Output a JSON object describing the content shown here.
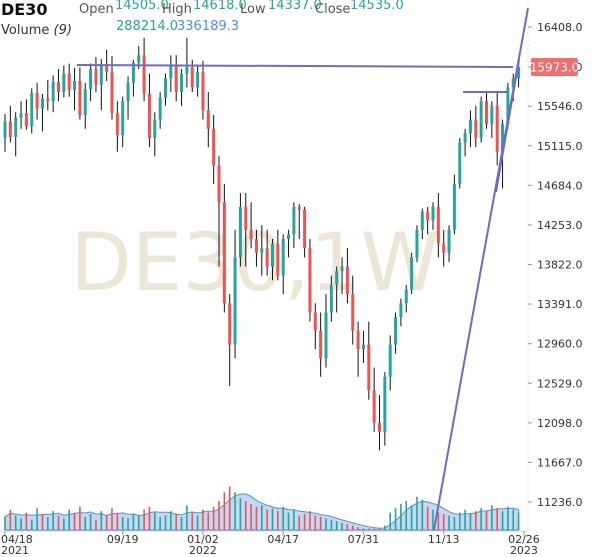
{
  "header": {
    "symbol": "DE30",
    "open_label": "Open",
    "open_value": "14505.0",
    "high_label": "High",
    "high_value": "14618.0",
    "low_label": "Low",
    "low_value": "14337.0",
    "close_label": "Close",
    "close_value": "14535.0",
    "volume_label": "Volume",
    "volume_period": "(9)",
    "volume_value": "288214.0",
    "volume_ma_value": "336189.3"
  },
  "watermark": "DE30,1W",
  "current_price_label": "15973.0",
  "colors": {
    "up": "#26a69a",
    "down": "#ef5350",
    "price_badge": "#f26d6d",
    "trendline": "#6b6bc9",
    "volume_up": "#26a69a",
    "volume_down": "#ef5350",
    "volume_area": "#8fb8ea"
  },
  "chart_data": {
    "type": "candlestick",
    "y_ticks": [
      "16408.0",
      "15973.0",
      "15546.0",
      "15115.0",
      "14684.0",
      "14253.0",
      "13822.0",
      "13391.0",
      "12960.0",
      "12529.0",
      "12098.0",
      "11667.0",
      "11236.0"
    ],
    "ylim": [
      10900,
      16700
    ],
    "x_ticks": [
      {
        "label": "04/18",
        "sub": "2021",
        "index": 0
      },
      {
        "label": "09/19",
        "sub": "",
        "index": 22
      },
      {
        "label": "01/02",
        "sub": "2022",
        "index": 37
      },
      {
        "label": "04/17",
        "sub": "",
        "index": 52
      },
      {
        "label": "07/31",
        "sub": "",
        "index": 67
      },
      {
        "label": "11/13",
        "sub": "",
        "index": 82
      },
      {
        "label": "02/26",
        "sub": "2023",
        "index": 97
      }
    ],
    "candles": [
      [
        15200,
        15460,
        15050,
        15380
      ],
      [
        15380,
        15550,
        15150,
        15210
      ],
      [
        15210,
        15480,
        15000,
        15420
      ],
      [
        15420,
        15600,
        15300,
        15470
      ],
      [
        15470,
        15620,
        15290,
        15330
      ],
      [
        15330,
        15740,
        15250,
        15690
      ],
      [
        15690,
        15800,
        15400,
        15520
      ],
      [
        15520,
        15680,
        15270,
        15630
      ],
      [
        15630,
        15830,
        15500,
        15600
      ],
      [
        15600,
        15880,
        15480,
        15810
      ],
      [
        15810,
        15950,
        15600,
        15700
      ],
      [
        15700,
        15990,
        15640,
        15900
      ],
      [
        15900,
        16010,
        15650,
        15720
      ],
      [
        15720,
        15960,
        15500,
        15820
      ],
      [
        15820,
        15970,
        15400,
        15450
      ],
      [
        15450,
        15800,
        15300,
        15730
      ],
      [
        15730,
        16010,
        15600,
        15950
      ],
      [
        15950,
        16080,
        15700,
        15780
      ],
      [
        15780,
        16060,
        15500,
        16000
      ],
      [
        16000,
        16160,
        15820,
        15920
      ],
      [
        15920,
        16090,
        15400,
        15470
      ],
      [
        15470,
        15600,
        15050,
        15230
      ],
      [
        15230,
        15650,
        15100,
        15600
      ],
      [
        15600,
        15870,
        15400,
        15800
      ],
      [
        15800,
        16050,
        15650,
        16020
      ],
      [
        16020,
        16200,
        15950,
        16100
      ],
      [
        16100,
        16290,
        15600,
        15680
      ],
      [
        15680,
        15900,
        15100,
        15200
      ],
      [
        15200,
        15480,
        15000,
        15400
      ],
      [
        15400,
        15700,
        15300,
        15640
      ],
      [
        15640,
        15900,
        15550,
        15850
      ],
      [
        15850,
        16100,
        15700,
        16000
      ],
      [
        16000,
        16100,
        15600,
        15700
      ],
      [
        15700,
        15950,
        15550,
        15900
      ],
      [
        15900,
        16290,
        15750,
        15970
      ],
      [
        15970,
        16050,
        15700,
        15750
      ],
      [
        15750,
        16000,
        15650,
        15920
      ],
      [
        15920,
        16040,
        15400,
        15500
      ],
      [
        15500,
        15700,
        15100,
        15300
      ],
      [
        15300,
        15450,
        14700,
        14900
      ],
      [
        14900,
        15000,
        13800,
        14500
      ],
      [
        14500,
        14700,
        13300,
        13400
      ],
      [
        13400,
        13500,
        12500,
        12950
      ],
      [
        12950,
        14200,
        12800,
        13900
      ],
      [
        13900,
        14600,
        13800,
        14450
      ],
      [
        14450,
        14600,
        13800,
        14200
      ],
      [
        14200,
        14500,
        14000,
        14100
      ],
      [
        14100,
        14200,
        13800,
        13950
      ],
      [
        13950,
        14250,
        13700,
        14000
      ],
      [
        14000,
        14200,
        13700,
        13800
      ],
      [
        13800,
        14100,
        13650,
        14050
      ],
      [
        14050,
        14200,
        13650,
        13700
      ],
      [
        13700,
        14150,
        13500,
        14100
      ],
      [
        14100,
        14200,
        13900,
        14150
      ],
      [
        14150,
        14500,
        14000,
        14450
      ],
      [
        14450,
        14480,
        14100,
        14420
      ],
      [
        14420,
        14450,
        13900,
        14000
      ],
      [
        14000,
        14100,
        13200,
        13300
      ],
      [
        13300,
        13400,
        12900,
        13100
      ],
      [
        13100,
        13300,
        12600,
        12800
      ],
      [
        12800,
        13500,
        12700,
        13300
      ],
      [
        13300,
        13700,
        13200,
        13600
      ],
      [
        13600,
        13800,
        13300,
        13750
      ],
      [
        13750,
        13900,
        13500,
        13800
      ],
      [
        13800,
        14000,
        13400,
        13500
      ],
      [
        13500,
        13700,
        12950,
        13100
      ],
      [
        13100,
        13200,
        12600,
        12900
      ],
      [
        12900,
        13100,
        12750,
        12950
      ],
      [
        12950,
        13200,
        12350,
        12450
      ],
      [
        12450,
        12700,
        12000,
        12100
      ],
      [
        12100,
        12400,
        11800,
        12000
      ],
      [
        12000,
        12650,
        11850,
        12600
      ],
      [
        12600,
        13050,
        12450,
        12950
      ],
      [
        12950,
        13300,
        12850,
        13250
      ],
      [
        13250,
        13450,
        13150,
        13400
      ],
      [
        13400,
        13600,
        13300,
        13550
      ],
      [
        13550,
        13950,
        13500,
        13900
      ],
      [
        13900,
        14250,
        13850,
        14200
      ],
      [
        14200,
        14430,
        14100,
        14400
      ],
      [
        14400,
        14450,
        14150,
        14300
      ],
      [
        14300,
        14500,
        14200,
        14450
      ],
      [
        14450,
        14600,
        13900,
        14050
      ],
      [
        14050,
        14200,
        13800,
        13950
      ],
      [
        13950,
        14250,
        13850,
        14200
      ],
      [
        14200,
        14800,
        14150,
        14700
      ],
      [
        14700,
        15200,
        14650,
        15150
      ],
      [
        15150,
        15300,
        15000,
        15250
      ],
      [
        15250,
        15500,
        15100,
        15400
      ],
      [
        15400,
        15550,
        15100,
        15200
      ],
      [
        15200,
        15650,
        15150,
        15600
      ],
      [
        15600,
        15700,
        15300,
        15350
      ],
      [
        15350,
        15600,
        15200,
        15550
      ],
      [
        15550,
        15700,
        14900,
        15050
      ],
      [
        15050,
        15400,
        14650,
        15350
      ],
      [
        15350,
        15800,
        15300,
        15750
      ],
      [
        15750,
        15900,
        15600,
        15850
      ],
      [
        15850,
        16000,
        15750,
        15973
      ]
    ],
    "volume": [
      [
        90,
        1
      ],
      [
        140,
        0
      ],
      [
        100,
        1
      ],
      [
        80,
        1
      ],
      [
        120,
        0
      ],
      [
        70,
        1
      ],
      [
        150,
        1
      ],
      [
        110,
        0
      ],
      [
        90,
        1
      ],
      [
        130,
        1
      ],
      [
        100,
        0
      ],
      [
        80,
        1
      ],
      [
        140,
        1
      ],
      [
        120,
        0
      ],
      [
        160,
        0
      ],
      [
        90,
        1
      ],
      [
        110,
        1
      ],
      [
        70,
        0
      ],
      [
        130,
        1
      ],
      [
        100,
        0
      ],
      [
        150,
        0
      ],
      [
        120,
        0
      ],
      [
        90,
        1
      ],
      [
        80,
        1
      ],
      [
        110,
        1
      ],
      [
        100,
        1
      ],
      [
        140,
        0
      ],
      [
        160,
        0
      ],
      [
        120,
        1
      ],
      [
        90,
        1
      ],
      [
        100,
        1
      ],
      [
        130,
        1
      ],
      [
        110,
        0
      ],
      [
        90,
        1
      ],
      [
        170,
        1
      ],
      [
        120,
        0
      ],
      [
        100,
        1
      ],
      [
        140,
        0
      ],
      [
        120,
        0
      ],
      [
        160,
        0
      ],
      [
        200,
        0
      ],
      [
        260,
        0
      ],
      [
        300,
        0
      ],
      [
        260,
        1
      ],
      [
        220,
        1
      ],
      [
        200,
        0
      ],
      [
        180,
        0
      ],
      [
        160,
        0
      ],
      [
        170,
        1
      ],
      [
        140,
        0
      ],
      [
        150,
        1
      ],
      [
        130,
        0
      ],
      [
        160,
        1
      ],
      [
        120,
        1
      ],
      [
        140,
        1
      ],
      [
        100,
        0
      ],
      [
        110,
        0
      ],
      [
        130,
        0
      ],
      [
        100,
        0
      ],
      [
        90,
        0
      ],
      [
        80,
        1
      ],
      [
        70,
        1
      ],
      [
        60,
        1
      ],
      [
        50,
        1
      ],
      [
        40,
        0
      ],
      [
        30,
        0
      ],
      [
        20,
        0
      ],
      [
        10,
        1
      ],
      [
        10,
        0
      ],
      [
        10,
        0
      ],
      [
        10,
        0
      ],
      [
        30,
        1
      ],
      [
        120,
        1
      ],
      [
        150,
        1
      ],
      [
        180,
        1
      ],
      [
        200,
        1
      ],
      [
        170,
        1
      ],
      [
        230,
        1
      ],
      [
        210,
        1
      ],
      [
        160,
        0
      ],
      [
        140,
        1
      ],
      [
        120,
        0
      ],
      [
        110,
        0
      ],
      [
        100,
        1
      ],
      [
        90,
        1
      ],
      [
        120,
        1
      ],
      [
        140,
        1
      ],
      [
        110,
        1
      ],
      [
        130,
        0
      ],
      [
        150,
        1
      ],
      [
        130,
        0
      ],
      [
        170,
        1
      ],
      [
        150,
        0
      ],
      [
        130,
        1
      ],
      [
        160,
        1
      ],
      [
        140,
        1
      ],
      [
        120,
        1
      ]
    ]
  }
}
